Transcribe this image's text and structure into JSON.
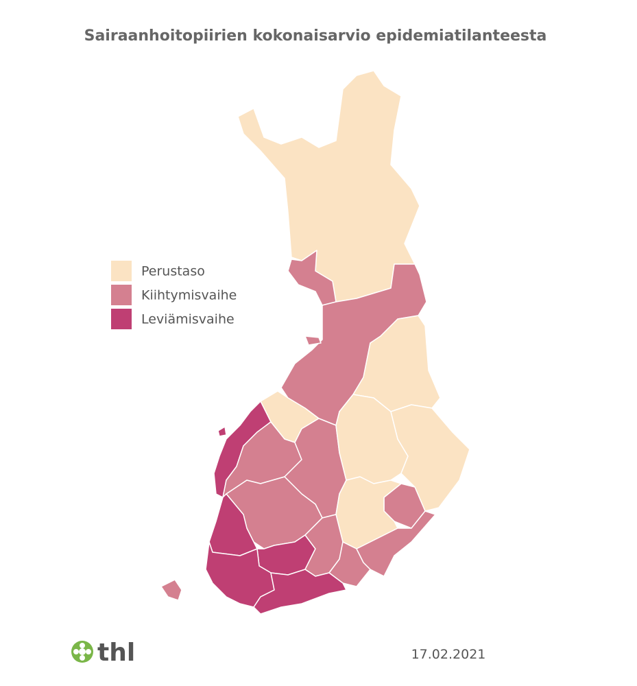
{
  "header": {
    "title": "Sairaanhoitopiirien kokonaisarvio epidemiatilanteesta"
  },
  "legend": {
    "items": [
      {
        "label": "Perustaso",
        "color": "#fbe3c3"
      },
      {
        "label": "Kiihtymisvaihe",
        "color": "#d48090"
      },
      {
        "label": "Leviämisvaihe",
        "color": "#bf3f73"
      }
    ]
  },
  "footer": {
    "logo": "thl",
    "date": "17.02.2021"
  }
}
